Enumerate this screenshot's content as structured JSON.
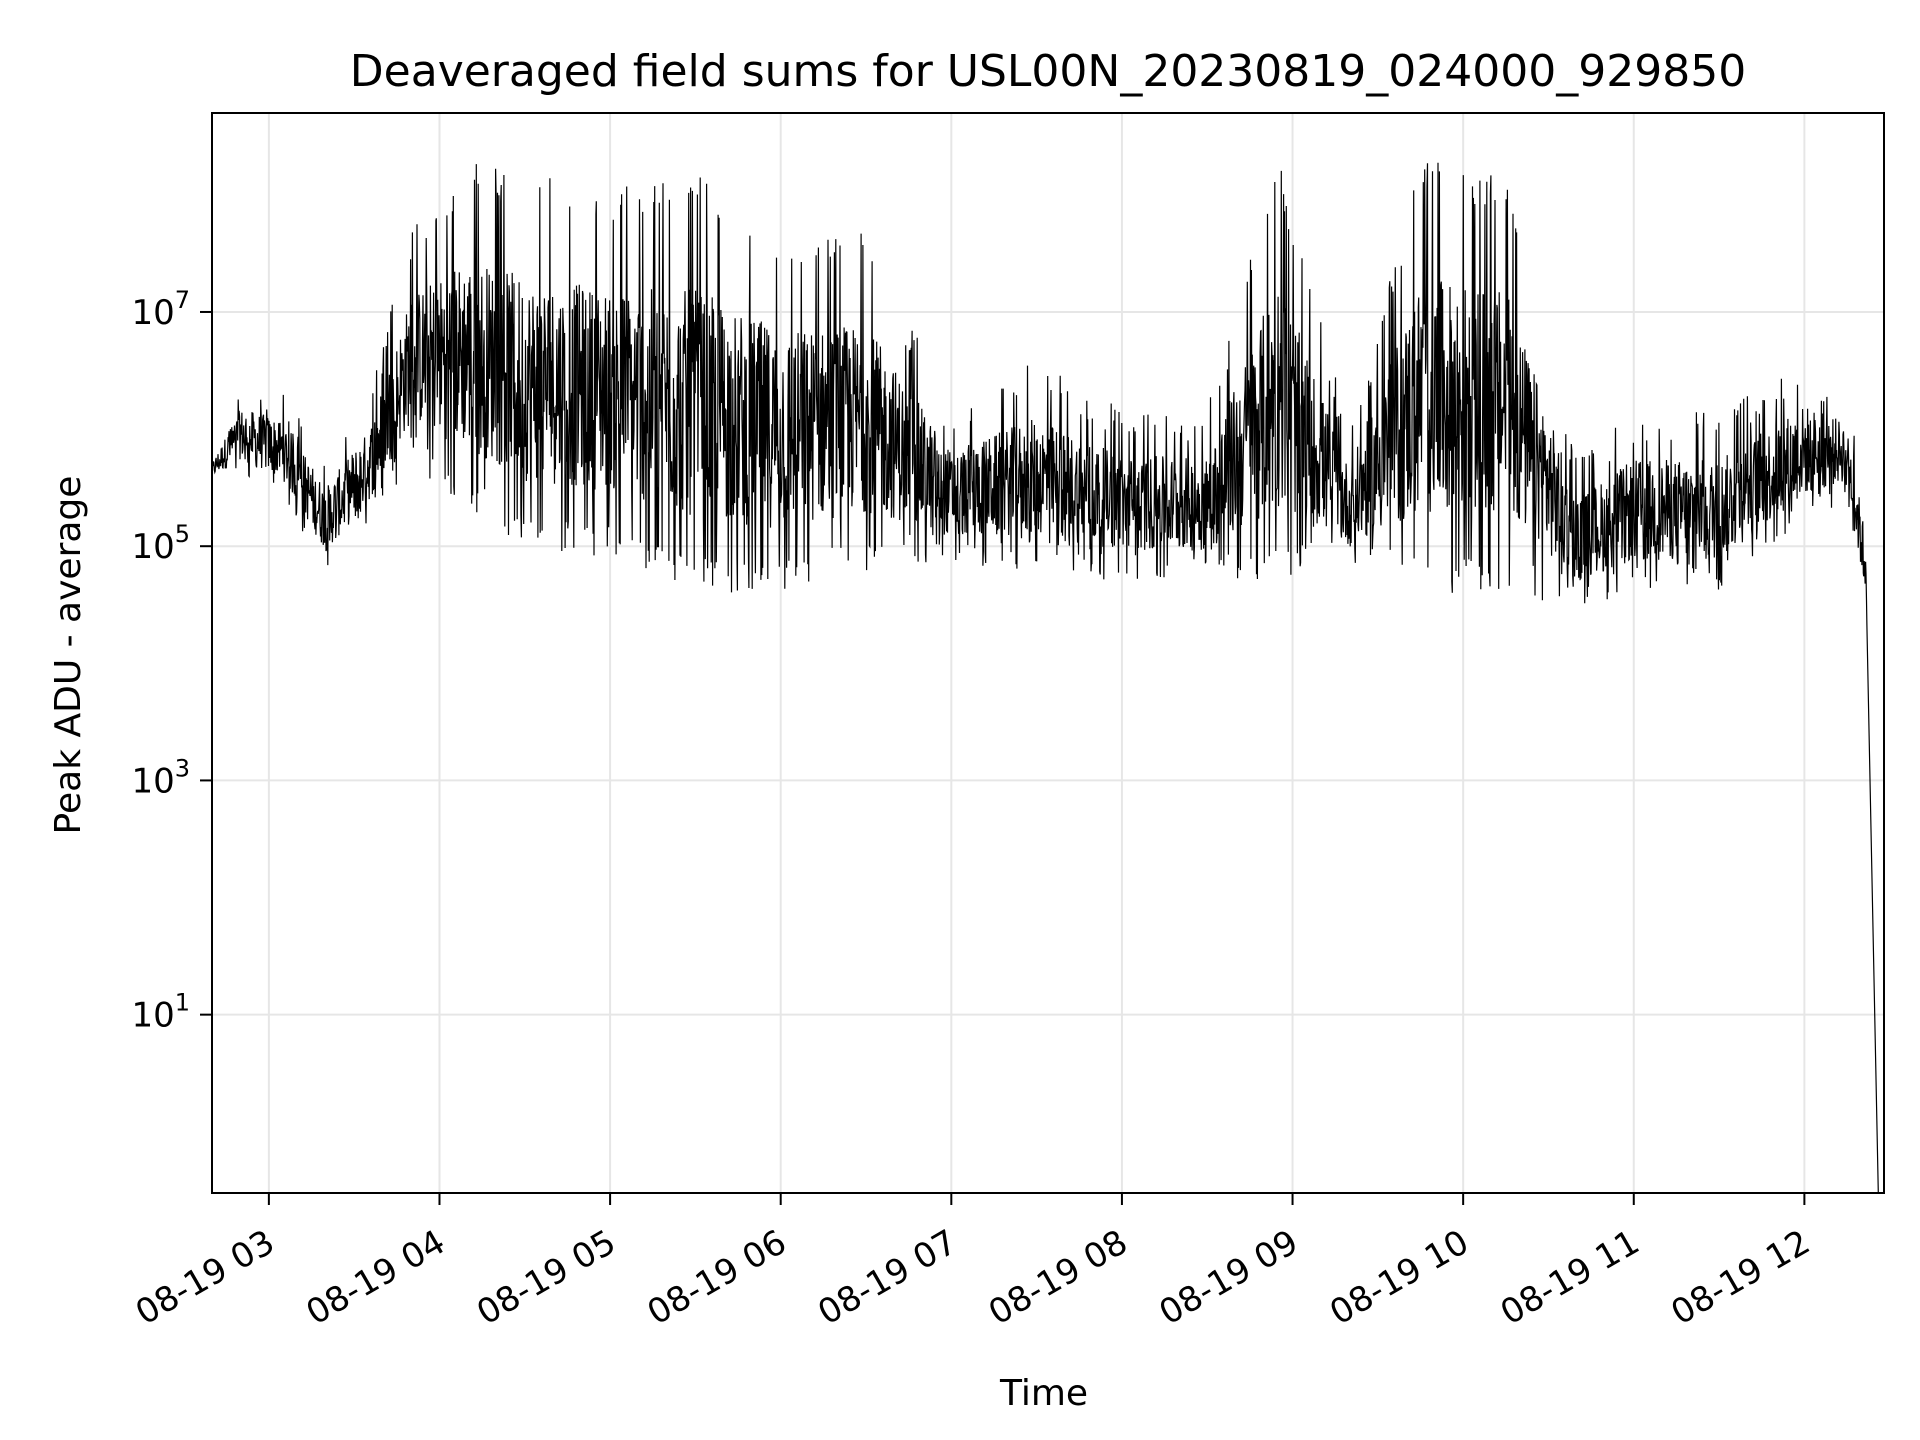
{
  "chart_data": {
    "type": "line",
    "title": "Deaveraged field sums for USL00N_20230819_024000_929850",
    "xlabel": "Time",
    "ylabel": "Peak ADU - average",
    "yscale": "log",
    "ylim": [
      0.3,
      500000000
    ],
    "xlim": [
      "2023-08-19 02:40",
      "2023-08-19 12:28"
    ],
    "grid": true,
    "line_color": "#000000",
    "x_ticks": [
      {
        "label": "08-19 03",
        "time": "2023-08-19 03:00"
      },
      {
        "label": "08-19 04",
        "time": "2023-08-19 04:00"
      },
      {
        "label": "08-19 05",
        "time": "2023-08-19 05:00"
      },
      {
        "label": "08-19 06",
        "time": "2023-08-19 06:00"
      },
      {
        "label": "08-19 07",
        "time": "2023-08-19 07:00"
      },
      {
        "label": "08-19 08",
        "time": "2023-08-19 08:00"
      },
      {
        "label": "08-19 09",
        "time": "2023-08-19 09:00"
      },
      {
        "label": "08-19 10",
        "time": "2023-08-19 10:00"
      },
      {
        "label": "08-19 11",
        "time": "2023-08-19 11:00"
      },
      {
        "label": "08-19 12",
        "time": "2023-08-19 12:00"
      }
    ],
    "y_ticks": [
      {
        "base": "10",
        "exp": "1",
        "value": 10
      },
      {
        "base": "10",
        "exp": "3",
        "value": 1000
      },
      {
        "base": "10",
        "exp": "5",
        "value": 100000
      },
      {
        "base": "10",
        "exp": "7",
        "value": 10000000
      }
    ],
    "series": [
      {
        "approximate_envelope": [
          {
            "time": "2023-08-19 02:40",
            "low": 350000,
            "high": 600000
          },
          {
            "time": "2023-08-19 02:50",
            "low": 400000,
            "high": 2500000
          },
          {
            "time": "2023-08-19 03:05",
            "low": 250000,
            "high": 2200000
          },
          {
            "time": "2023-08-19 03:20",
            "low": 60000,
            "high": 600000
          },
          {
            "time": "2023-08-19 03:35",
            "low": 150000,
            "high": 2000000
          },
          {
            "time": "2023-08-19 03:50",
            "low": 500000,
            "high": 50000000
          },
          {
            "time": "2023-08-19 04:10",
            "low": 200000,
            "high": 200000000
          },
          {
            "time": "2023-08-19 04:30",
            "low": 100000,
            "high": 150000000
          },
          {
            "time": "2023-08-19 05:00",
            "low": 80000,
            "high": 120000000
          },
          {
            "time": "2023-08-19 05:30",
            "low": 40000,
            "high": 150000000
          },
          {
            "time": "2023-08-19 06:00",
            "low": 40000,
            "high": 50000000
          },
          {
            "time": "2023-08-19 06:30",
            "low": 60000,
            "high": 50000000
          },
          {
            "time": "2023-08-19 07:00",
            "low": 70000,
            "high": 1500000
          },
          {
            "time": "2023-08-19 07:30",
            "low": 60000,
            "high": 4000000
          },
          {
            "time": "2023-08-19 08:00",
            "low": 50000,
            "high": 1500000
          },
          {
            "time": "2023-08-19 08:30",
            "low": 50000,
            "high": 1500000
          },
          {
            "time": "2023-08-19 08:55",
            "low": 50000,
            "high": 200000000
          },
          {
            "time": "2023-08-19 09:20",
            "low": 60000,
            "high": 1000000
          },
          {
            "time": "2023-08-19 09:45",
            "low": 40000,
            "high": 200000000
          },
          {
            "time": "2023-08-19 10:15",
            "low": 40000,
            "high": 150000000
          },
          {
            "time": "2023-08-19 10:40",
            "low": 30000,
            "high": 600000
          },
          {
            "time": "2023-08-19 11:00",
            "low": 40000,
            "high": 1500000
          },
          {
            "time": "2023-08-19 11:30",
            "low": 40000,
            "high": 1500000
          },
          {
            "time": "2023-08-19 12:00",
            "low": 150000,
            "high": 4000000
          },
          {
            "time": "2023-08-19 12:15",
            "low": 250000,
            "high": 2000000
          },
          {
            "time": "2023-08-19 12:22",
            "low": 20000,
            "high": 200000
          },
          {
            "time": "2023-08-19 12:26",
            "low": 0.3,
            "high": 1
          }
        ]
      }
    ]
  }
}
